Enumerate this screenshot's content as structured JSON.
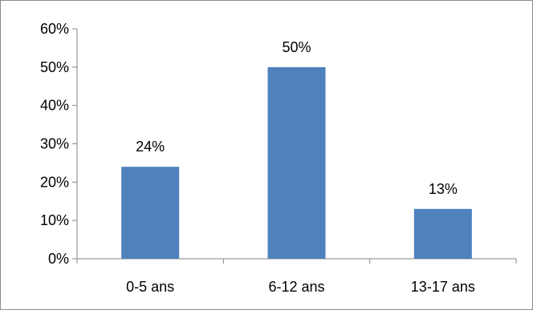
{
  "chart_data": {
    "type": "bar",
    "title": "",
    "xlabel": "",
    "ylabel": "",
    "categories": [
      "0-5 ans",
      "6-12 ans",
      "13-17 ans"
    ],
    "values": [
      24,
      50,
      13
    ],
    "value_labels": [
      "24%",
      "50%",
      "13%"
    ],
    "ylim": [
      0,
      60
    ],
    "y_ticks": [
      0,
      10,
      20,
      30,
      40,
      50,
      60
    ],
    "y_tick_labels": [
      "0%",
      "10%",
      "20%",
      "30%",
      "40%",
      "50%",
      "60%"
    ],
    "grid": false,
    "legend": "none",
    "bar_color": "#4f81bd",
    "axis_color": "#868686"
  }
}
